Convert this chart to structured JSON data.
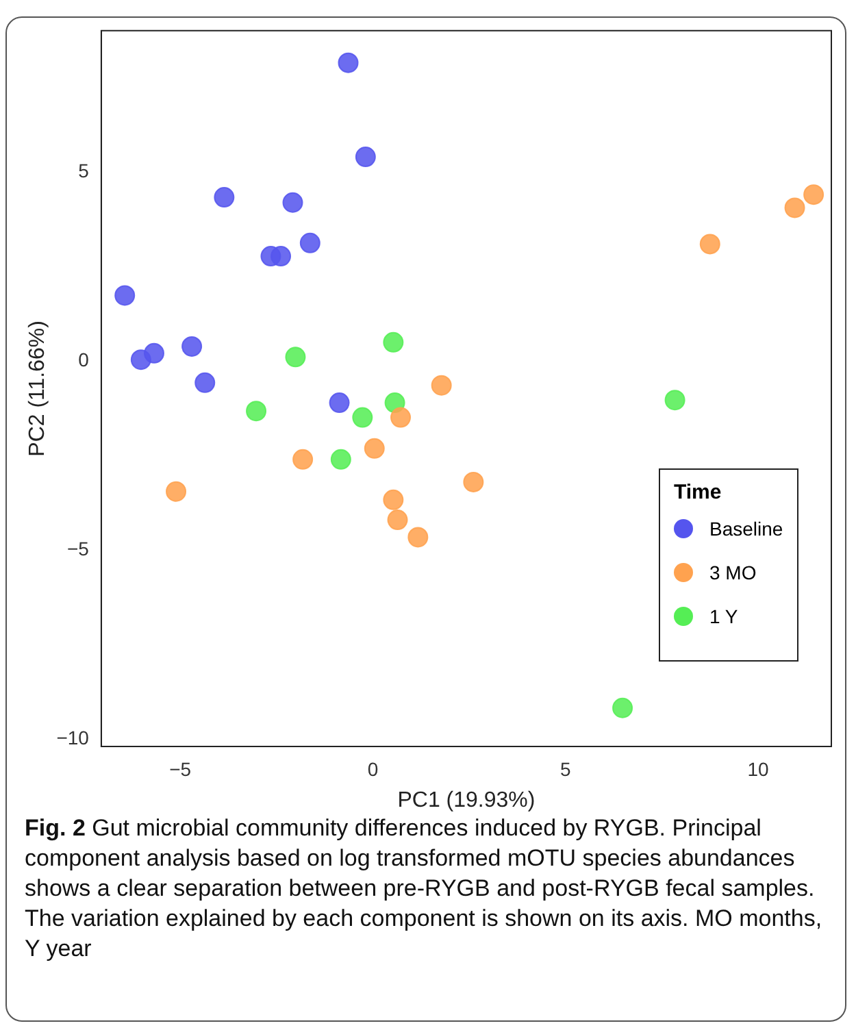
{
  "chart_data": {
    "type": "scatter",
    "xlabel": "PC1 (19.93%)",
    "ylabel": "PC2 (11.66%)",
    "legend_title": "Time",
    "legend": "bottom right",
    "grid": false,
    "marker": "circle",
    "xlim": [
      -7.05,
      11.9
    ],
    "ylim": [
      -10.2,
      8.75
    ],
    "xticks": [
      {
        "value": -5,
        "label": "−5"
      },
      0,
      5,
      10
    ],
    "yticks": [
      {
        "value": -10,
        "label": "−10"
      },
      {
        "value": -5,
        "label": "−5"
      },
      0,
      5
    ],
    "series": [
      {
        "name": "Baseline",
        "color": "#5555ee",
        "x": [
          -0.64,
          -0.19,
          -3.86,
          -2.08,
          -1.63,
          -2.65,
          -2.39,
          -6.44,
          -6.02,
          -5.68,
          -4.7,
          -4.36,
          -0.87
        ],
        "values": [
          7.9,
          5.41,
          4.34,
          4.2,
          3.13,
          2.78,
          2.78,
          1.74,
          0.04,
          0.21,
          0.39,
          -0.57,
          -1.1
        ]
      },
      {
        "name": "3 MO",
        "color": "#ffa24f",
        "x": [
          11.44,
          10.95,
          8.75,
          1.78,
          0.72,
          0.04,
          -1.82,
          2.61,
          -5.11,
          0.53,
          0.64,
          1.17
        ],
        "values": [
          4.41,
          4.06,
          3.1,
          -0.64,
          -1.49,
          -2.31,
          -2.6,
          -3.2,
          -3.45,
          -3.67,
          -4.2,
          -4.66
        ]
      },
      {
        "name": "1 Y",
        "color": "#55ee55",
        "x": [
          -2.01,
          0.53,
          0.57,
          -0.27,
          -3.03,
          -0.83,
          7.84,
          6.48
        ],
        "values": [
          0.11,
          0.5,
          -1.1,
          -1.49,
          -1.32,
          -2.6,
          -1.03,
          -9.18
        ]
      }
    ],
    "annotations": [
      "Fig. 2",
      "Gut microbial community differences induced by RYGB. Principal component analysis based on log transformed mOTU species abundances shows a clear separation between pre-RYGB and post-RYGB fecal samples. The variation explained by each component is shown on its axis. MO months, Y year"
    ]
  }
}
